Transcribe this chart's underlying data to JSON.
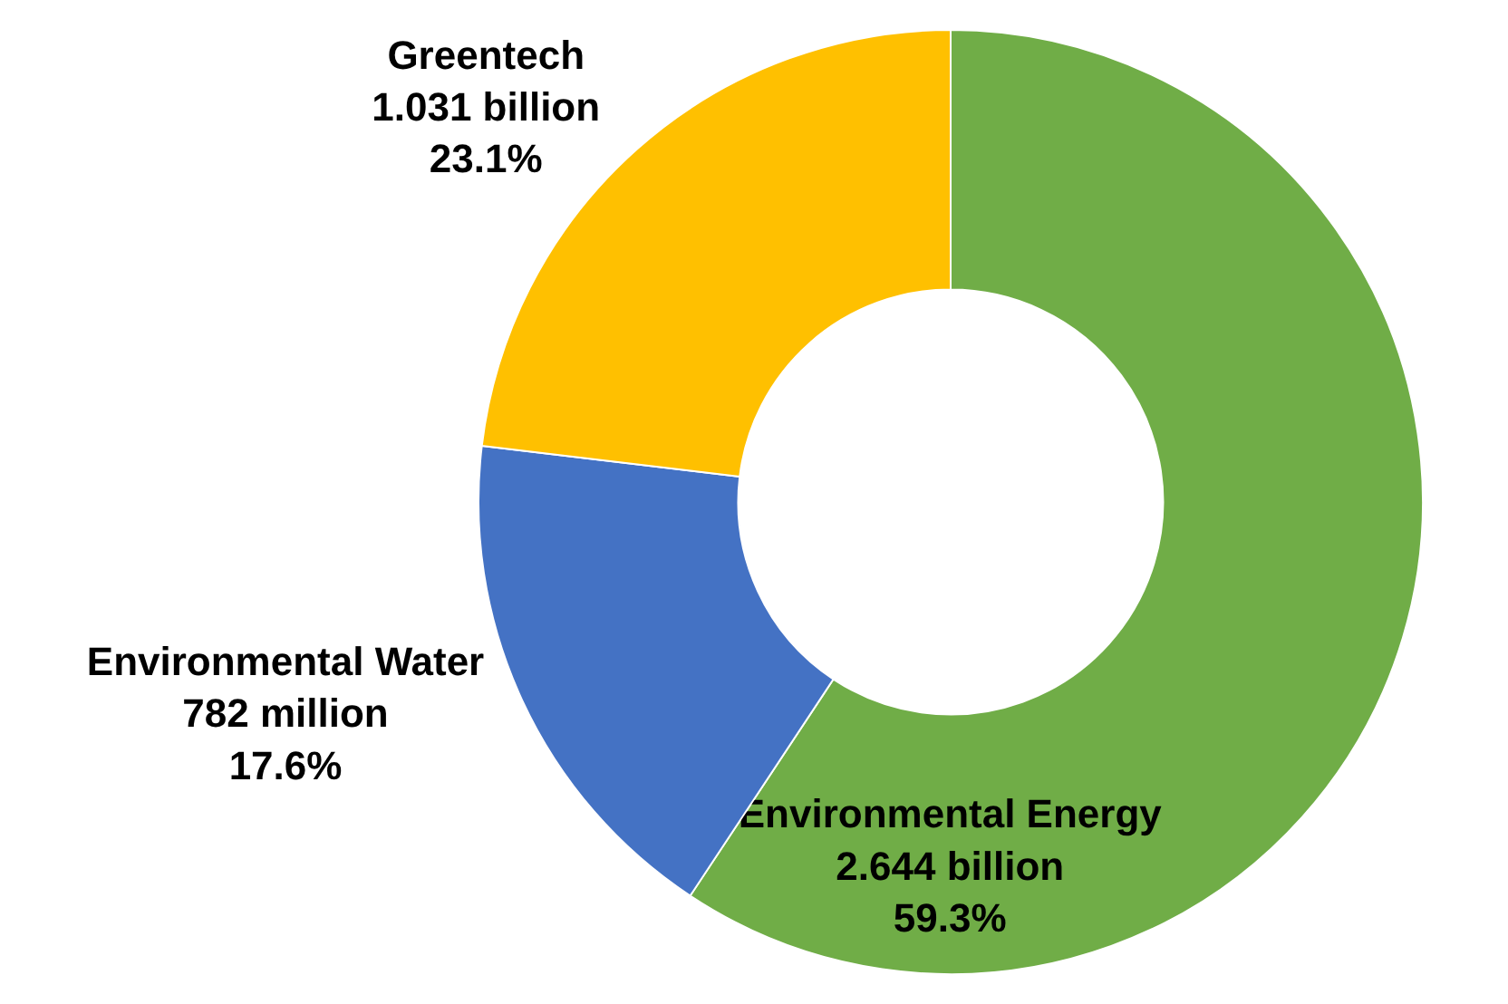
{
  "chart_data": {
    "type": "donut",
    "categories": [
      "Environmental Energy",
      "Environmental Water",
      "Greentech"
    ],
    "values": [
      59.3,
      17.6,
      23.1
    ],
    "colors": [
      "#70ad47",
      "#4472c4",
      "#ffc000"
    ],
    "value_labels": [
      "2.644 billion\n59.3%",
      "782 million\n17.6%",
      "1.031 billion\n23.1%"
    ],
    "legend": false
  }
}
